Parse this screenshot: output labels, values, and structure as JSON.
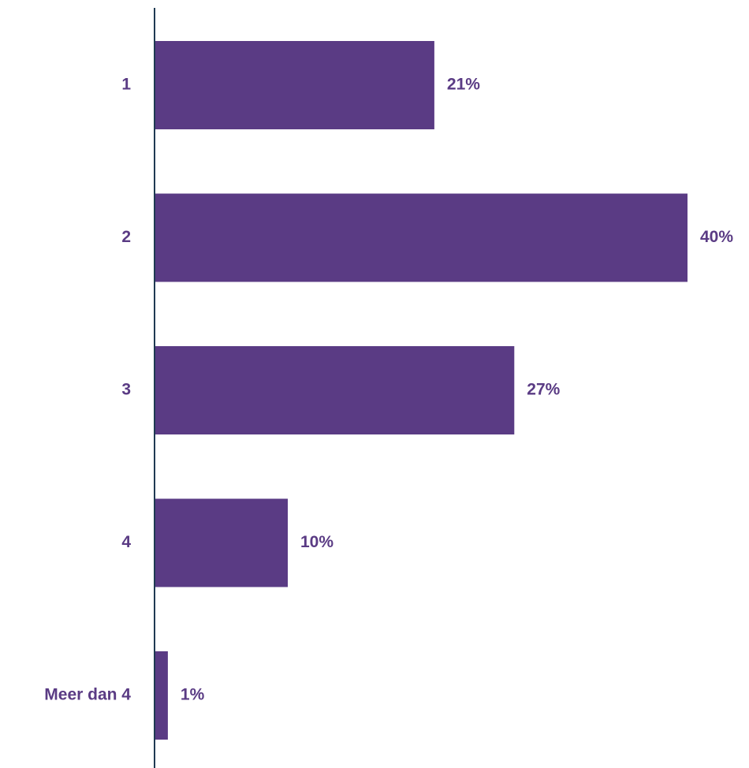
{
  "chart_data": {
    "type": "bar",
    "orientation": "horizontal",
    "categories": [
      "1",
      "2",
      "3",
      "4",
      "Meer dan 4"
    ],
    "values": [
      21,
      40,
      27,
      10,
      1
    ],
    "value_labels": [
      "21%",
      "40%",
      "27%",
      "10%",
      "1%"
    ],
    "unit": "%",
    "title": "",
    "xlabel": "",
    "ylabel": "",
    "xlim": [
      0,
      40
    ],
    "grid": false,
    "legend": "none",
    "colors": {
      "bar": "#5a3b84",
      "label": "#5a3b84",
      "axis": "#1f3a52"
    }
  }
}
